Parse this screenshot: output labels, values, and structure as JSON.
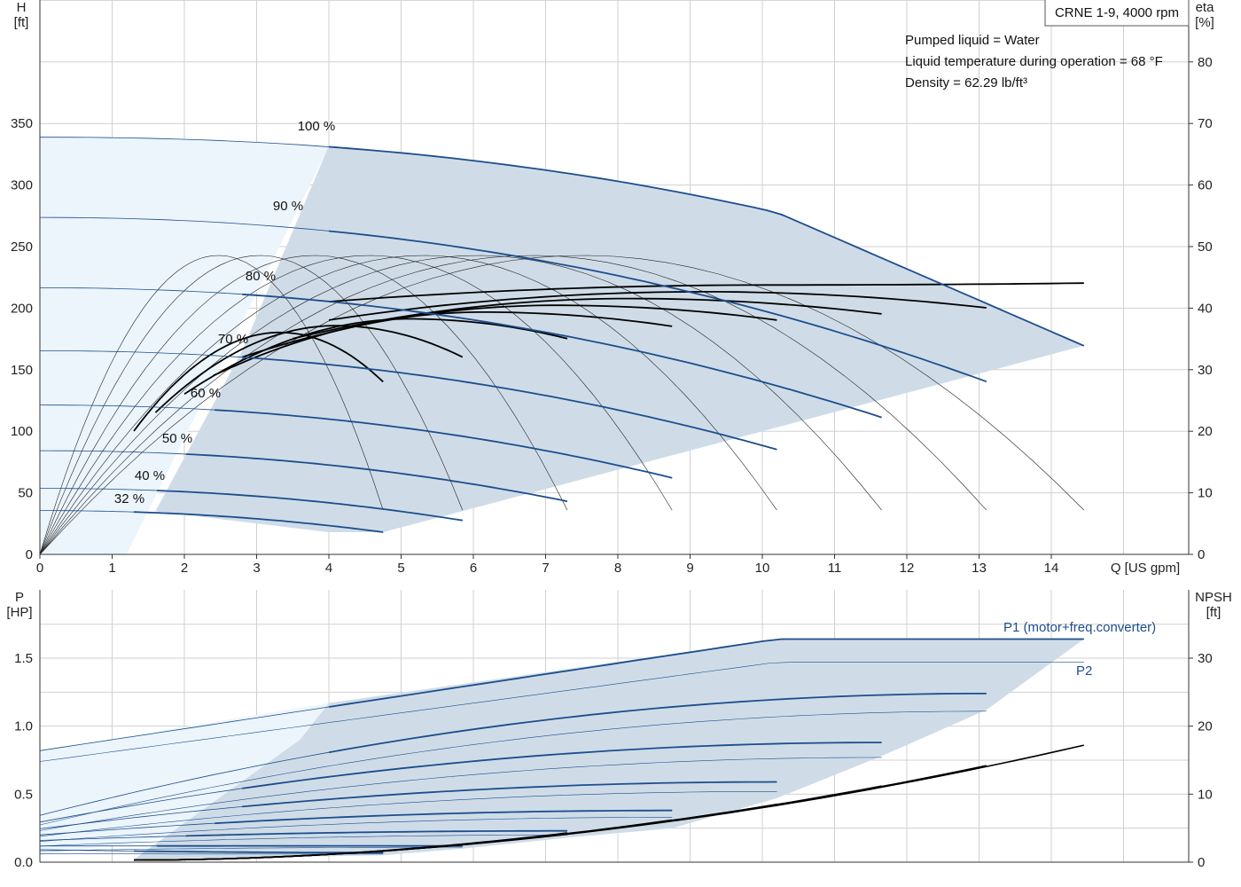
{
  "title_box": "CRNE 1-9, 4000 rpm",
  "notes": [
    "Pumped liquid = Water",
    "Liquid temperature during operation = 68 °F",
    "Density = 62.29 lb/ft³"
  ],
  "colors": {
    "curve_blue": "#1d4e8c",
    "area_dark": "#cfdce8",
    "area_light": "#ecf5fc",
    "grid": "#d0d0d0"
  },
  "chart_data": [
    {
      "type": "line",
      "name": "head-efficiency",
      "x_label": "Q [US gpm]",
      "y_left_label": [
        "H",
        "[ft]"
      ],
      "y_right_label": [
        "eta",
        "[%]"
      ],
      "xlim": [
        0,
        15.9
      ],
      "ylim_left": [
        0,
        350
      ],
      "ylim_right": [
        0,
        80
      ],
      "x_ticks": [
        "0",
        "1",
        "2",
        "3",
        "4",
        "5",
        "6",
        "7",
        "8",
        "9",
        "10",
        "11",
        "12",
        "13",
        "14"
      ],
      "y_left_ticks": [
        "0",
        "50",
        "100",
        "150",
        "200",
        "250",
        "300",
        "350"
      ],
      "y_right_ticks": [
        "0",
        "10",
        "20",
        "30",
        "40",
        "50",
        "60",
        "70",
        "80"
      ],
      "speed_labels": [
        "100 %",
        "90 %",
        "80 %",
        "70 %",
        "60 %",
        "50 %",
        "40 %",
        "32 %"
      ],
      "head_curves": [
        {
          "speed": 100,
          "h0": 338,
          "qmax": 14.45,
          "hmax": 169
        },
        {
          "speed": 90,
          "h0": 273,
          "qmax": 13.1,
          "hmax": 140
        },
        {
          "speed": 80,
          "h0": 216,
          "qmax": 11.65,
          "hmax": 111
        },
        {
          "speed": 70,
          "h0": 165,
          "qmax": 10.2,
          "hmax": 85
        },
        {
          "speed": 60,
          "h0": 121,
          "qmax": 8.75,
          "hmax": 62
        },
        {
          "speed": 50,
          "h0": 84,
          "qmax": 7.3,
          "hmax": 43
        },
        {
          "speed": 40,
          "h0": 53.5,
          "qmax": 5.85,
          "hmax": 27.5
        },
        {
          "speed": 32,
          "h0": 35.5,
          "qmax": 4.75,
          "hmax": 18
        }
      ]
    },
    {
      "type": "line",
      "name": "power-npsh",
      "x_label": "",
      "y_left_label": [
        "P",
        "[HP]"
      ],
      "y_right_label": [
        "NPSH",
        "[ft]"
      ],
      "xlim": [
        0,
        15.9
      ],
      "ylim_left": [
        0,
        1.7
      ],
      "ylim_right": [
        0,
        35
      ],
      "y_left_ticks": [
        "0.0",
        "0.5",
        "1.0",
        "1.5"
      ],
      "y_right_ticks": [
        "0",
        "10",
        "20",
        "30"
      ],
      "series_labels": [
        "P1 (motor+freq.converter)",
        "P2"
      ],
      "power_curves": [
        {
          "speed": 100,
          "p1_0": 0.82,
          "p1_knee": 1.64,
          "p2_knee": 1.47,
          "qmax": 14.45
        },
        {
          "speed": 90,
          "p1_0": 0.72,
          "p1_knee": 1.24,
          "p2_knee": 1.11,
          "qmax": 13.1
        },
        {
          "speed": 80,
          "p1_0": 0.61,
          "p1_knee": 0.88,
          "p2_knee": 0.77,
          "qmax": 11.65
        },
        {
          "speed": 70,
          "p1_0": 0.5,
          "p1_knee": 0.59,
          "p2_knee": 0.52,
          "qmax": 10.2
        },
        {
          "speed": 60,
          "p1_0": 0.4,
          "p1_knee": 0.38,
          "p2_knee": 0.33,
          "qmax": 8.75
        },
        {
          "speed": 50,
          "p1_0": 0.31,
          "p1_knee": 0.23,
          "p2_knee": 0.2,
          "qmax": 7.3
        },
        {
          "speed": 40,
          "p1_0": 0.22,
          "p1_knee": 0.12,
          "p2_knee": 0.11,
          "qmax": 5.85
        },
        {
          "speed": 32,
          "p1_0": 0.16,
          "p1_knee": 0.07,
          "p2_knee": 0.06,
          "qmax": 4.75
        }
      ],
      "npsh_curves": [
        {
          "qmax": 14.45,
          "npsh_max": 17.2
        },
        {
          "qmax": 13.1,
          "npsh_max": 14.2
        },
        {
          "qmax": 11.65,
          "npsh_max": 11.2
        },
        {
          "qmax": 10.2,
          "npsh_max": 8.5
        },
        {
          "qmax": 8.75,
          "npsh_max": 6.2
        },
        {
          "qmax": 7.3,
          "npsh_max": 4.3
        }
      ]
    }
  ]
}
